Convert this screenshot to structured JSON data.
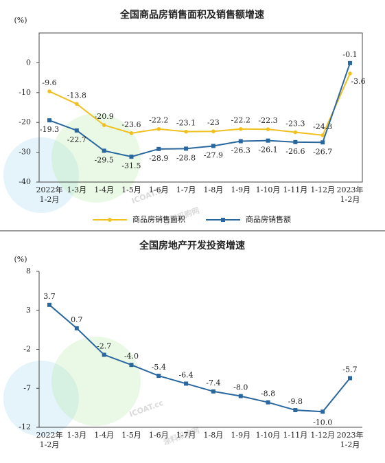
{
  "watermark": [
    "ICOAT.cc",
    "涂料采购网"
  ],
  "chart_data": [
    {
      "type": "line",
      "title": "全国商品房销售面积及销售额增速",
      "y_label": "(%)",
      "categories": [
        [
          "2022年",
          "1-2月"
        ],
        "1-3月",
        "1-4月",
        "1-5月",
        "1-6月",
        "1-7月",
        "1-8月",
        "1-9月",
        "1-10月",
        "1-11月",
        "1-12月",
        [
          "2023年",
          "1-2月"
        ]
      ],
      "series": [
        {
          "name": "商品房销售面积",
          "color": "#f0c020",
          "values": [
            -9.6,
            -13.8,
            -20.9,
            -23.6,
            -22.2,
            -23.1,
            -23.0,
            -22.2,
            -22.3,
            -23.3,
            -24.3,
            -3.6
          ]
        },
        {
          "name": "商品房销售额",
          "color": "#2a679e",
          "values": [
            -19.3,
            -22.7,
            -29.5,
            -31.5,
            -28.9,
            -28.8,
            -27.9,
            -26.3,
            -26.1,
            -26.6,
            -26.7,
            -0.1
          ]
        }
      ],
      "ylim": [
        -40,
        10
      ],
      "yticks": [
        0,
        -10,
        -20,
        -30,
        -40
      ],
      "legend": "bottom"
    },
    {
      "type": "line",
      "title": "全国房地产开发投资增速",
      "y_label": "(%)",
      "categories": [
        [
          "2022年",
          "1-2月"
        ],
        "1-3月",
        "1-4月",
        "1-5月",
        "1-6月",
        "1-7月",
        "1-8月",
        "1-9月",
        "1-10月",
        "1-11月",
        "1-12月",
        [
          "2023年",
          "1-2月"
        ]
      ],
      "values": [
        3.7,
        0.7,
        -2.7,
        -4.0,
        -5.4,
        -6.4,
        -7.4,
        -8.0,
        -8.8,
        -9.8,
        -10.0,
        -5.7
      ],
      "value_labels": [
        "3.7",
        "0.7",
        "-2.7",
        "-4.0",
        "-5.4",
        "-6.4",
        "-7.4",
        "-8.0",
        "-8.8",
        "-9.8",
        "-10.0",
        "-5.7"
      ],
      "color": "#2a679e",
      "ylim": [
        -12,
        8
      ],
      "yticks": [
        8,
        3,
        -2,
        -7,
        -12
      ]
    }
  ]
}
